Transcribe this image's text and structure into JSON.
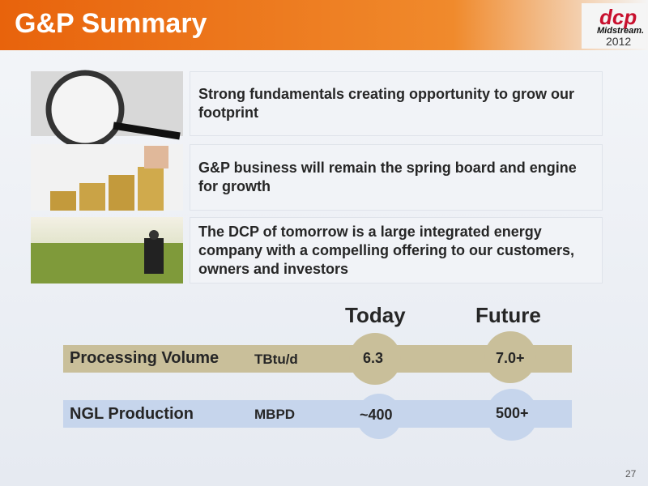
{
  "header": {
    "title": "G&P Summary",
    "logo": {
      "brand": "dcp",
      "sub": "Midstream.",
      "year": "2012"
    }
  },
  "points": [
    "Strong fundamentals creating opportunity to grow our footprint",
    "G&P business will remain the spring board and engine for growth",
    "The DCP of tomorrow is a large integrated energy company with a compelling offering to our customers, owners and investors"
  ],
  "table": {
    "columns": [
      "Today",
      "Future"
    ],
    "rows": [
      [
        "Processing Volume",
        "TBtu/d",
        "6.3",
        "7.0+"
      ],
      [
        "NGL Production",
        "MBPD",
        "~400",
        "500+"
      ]
    ]
  },
  "page_number": "27"
}
